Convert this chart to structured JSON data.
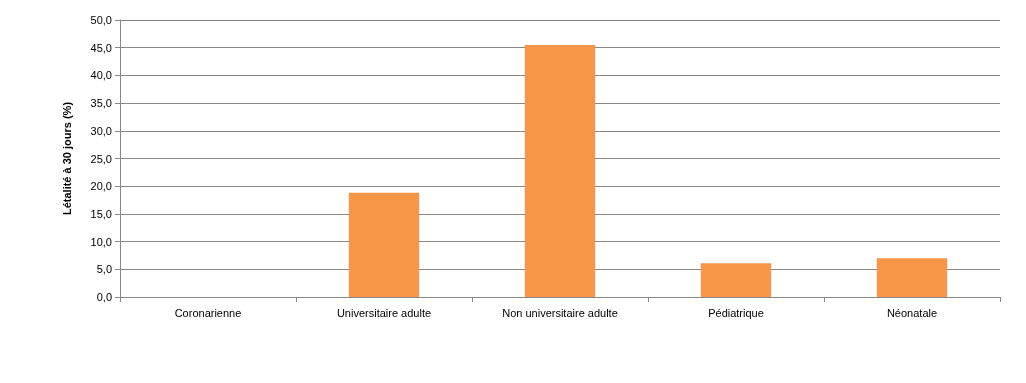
{
  "chart_data": {
    "type": "bar",
    "ylabel": "Létalité à 30 jours (%)",
    "categories": [
      "Coronarienne",
      "Universitaire adulte",
      "Non universitaire adulte",
      "Pédiatrique",
      "Néonatale"
    ],
    "values": [
      0,
      18.8,
      45.5,
      6.1,
      7.0
    ],
    "color": "#f79646",
    "ylim": [
      0,
      50
    ],
    "yticks": [
      {
        "value": 0,
        "label": "0,0"
      },
      {
        "value": 5,
        "label": "5,0"
      },
      {
        "value": 10,
        "label": "10,0"
      },
      {
        "value": 15,
        "label": "15,0"
      },
      {
        "value": 20,
        "label": "20,0"
      },
      {
        "value": 25,
        "label": "25,0"
      },
      {
        "value": 30,
        "label": "30,0"
      },
      {
        "value": 35,
        "label": "35,0"
      },
      {
        "value": 40,
        "label": "40,0"
      },
      {
        "value": 45,
        "label": "45,0"
      },
      {
        "value": 50,
        "label": "50,0"
      }
    ],
    "grid": "y"
  }
}
